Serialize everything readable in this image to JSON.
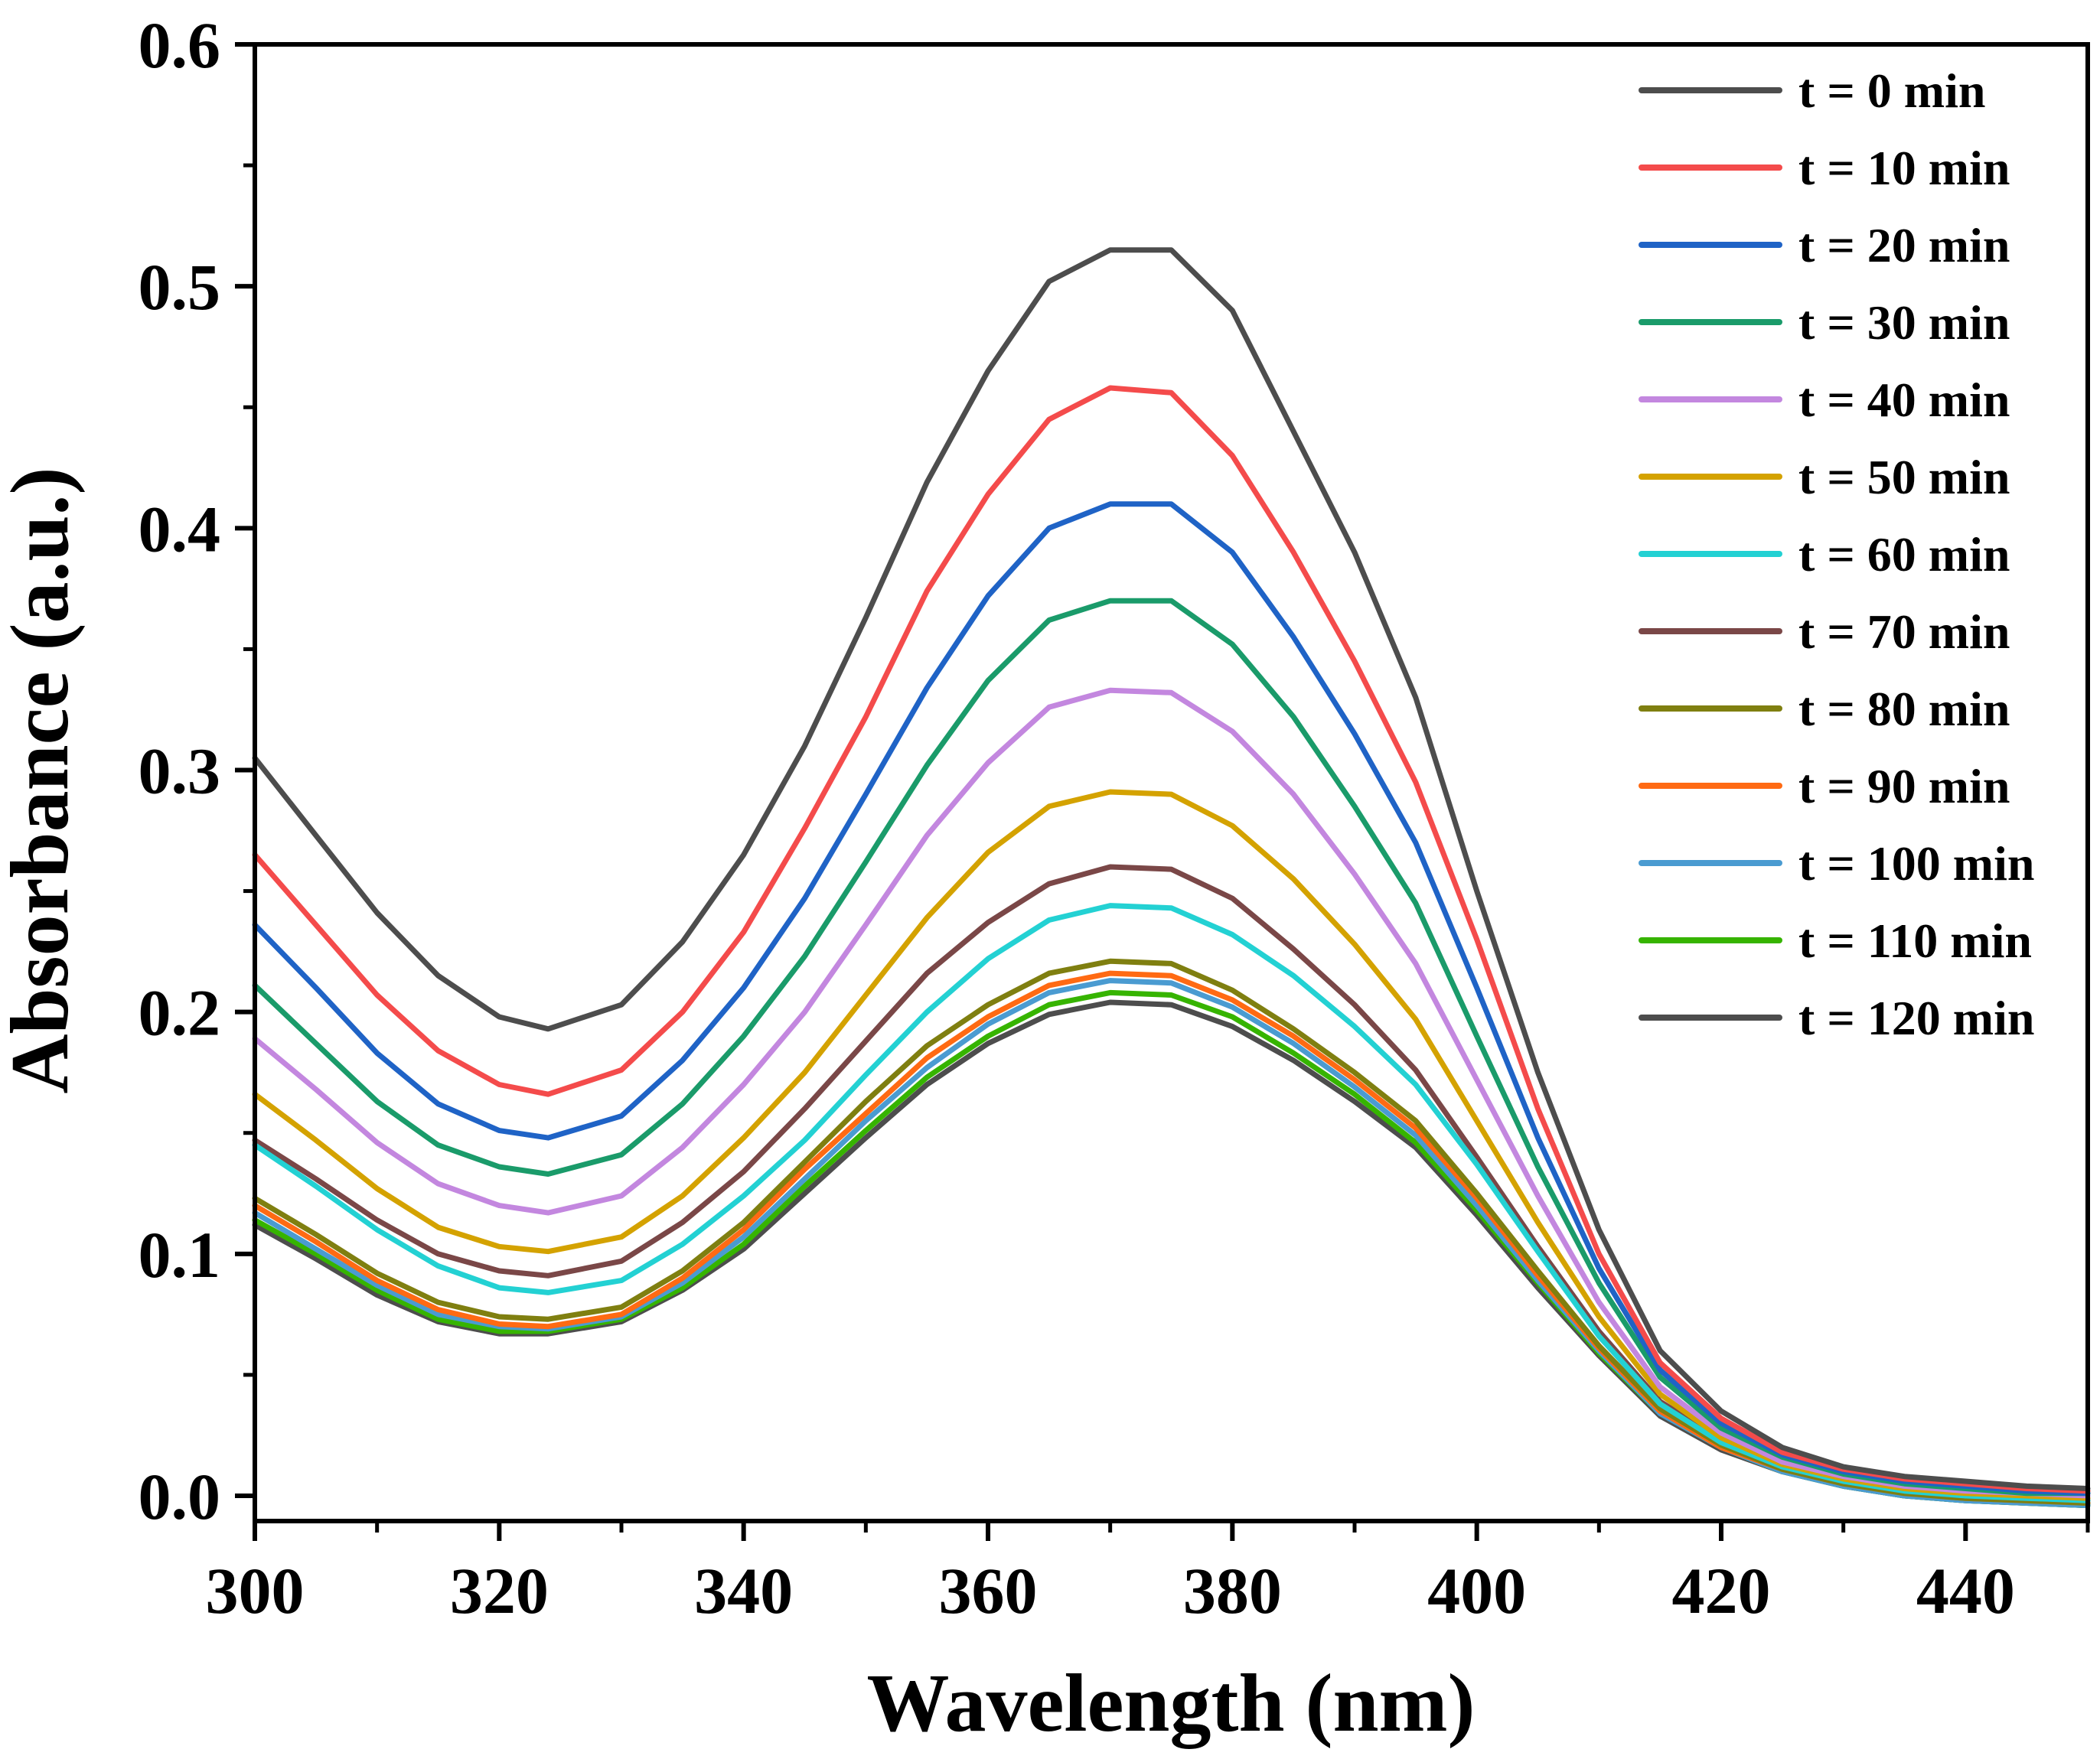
{
  "chart_data": {
    "type": "line",
    "title": "",
    "xlabel": "Wavelength (nm)",
    "ylabel": "Absorbance (a.u.)",
    "xlim": [
      300,
      450
    ],
    "ylim": [
      -0.01,
      0.6
    ],
    "xticks": [
      300,
      320,
      340,
      360,
      380,
      400,
      420,
      440
    ],
    "xtick_labels": [
      "300",
      "320",
      "340",
      "360",
      "380",
      "400",
      "420",
      "440"
    ],
    "yticks": [
      0.0,
      0.1,
      0.2,
      0.3,
      0.4,
      0.5,
      0.6
    ],
    "ytick_labels": [
      "0.0",
      "0.1",
      "0.2",
      "0.3",
      "0.4",
      "0.5",
      "0.6"
    ],
    "grid": false,
    "legend_position": "top-right",
    "x": [
      300,
      305,
      310,
      315,
      320,
      324,
      330,
      335,
      340,
      345,
      350,
      355,
      360,
      365,
      370,
      375,
      380,
      385,
      390,
      395,
      400,
      405,
      410,
      415,
      420,
      425,
      430,
      435,
      440,
      445,
      450
    ],
    "series": [
      {
        "name": "t = 0 min",
        "color": "#4d4d4d",
        "values": [
          0.305,
          0.273,
          0.241,
          0.215,
          0.198,
          0.193,
          0.203,
          0.229,
          0.265,
          0.31,
          0.363,
          0.419,
          0.465,
          0.502,
          0.515,
          0.515,
          0.49,
          0.44,
          0.39,
          0.33,
          0.25,
          0.175,
          0.11,
          0.06,
          0.035,
          0.02,
          0.012,
          0.008,
          0.006,
          0.004,
          0.003
        ]
      },
      {
        "name": "t = 10 min",
        "color": "#f44b4b",
        "values": [
          0.265,
          0.236,
          0.207,
          0.184,
          0.17,
          0.166,
          0.176,
          0.2,
          0.233,
          0.276,
          0.322,
          0.374,
          0.414,
          0.445,
          0.458,
          0.456,
          0.43,
          0.39,
          0.345,
          0.295,
          0.23,
          0.16,
          0.1,
          0.055,
          0.032,
          0.018,
          0.011,
          0.007,
          0.005,
          0.003,
          0.002
        ]
      },
      {
        "name": "t = 20 min",
        "color": "#1f63c6",
        "values": [
          0.236,
          0.21,
          0.183,
          0.162,
          0.151,
          0.148,
          0.157,
          0.18,
          0.21,
          0.247,
          0.29,
          0.334,
          0.372,
          0.4,
          0.41,
          0.41,
          0.39,
          0.355,
          0.315,
          0.27,
          0.21,
          0.148,
          0.094,
          0.052,
          0.03,
          0.017,
          0.01,
          0.006,
          0.004,
          0.002,
          0.001
        ]
      },
      {
        "name": "t = 30 min",
        "color": "#1a9b6a",
        "values": [
          0.211,
          0.187,
          0.163,
          0.145,
          0.136,
          0.133,
          0.141,
          0.162,
          0.19,
          0.223,
          0.262,
          0.302,
          0.337,
          0.362,
          0.37,
          0.37,
          0.352,
          0.322,
          0.285,
          0.245,
          0.19,
          0.136,
          0.088,
          0.049,
          0.028,
          0.016,
          0.009,
          0.005,
          0.003,
          0.001,
          0.001
        ]
      },
      {
        "name": "t = 40 min",
        "color": "#c387df",
        "values": [
          0.189,
          0.168,
          0.146,
          0.129,
          0.12,
          0.117,
          0.124,
          0.144,
          0.17,
          0.2,
          0.236,
          0.273,
          0.303,
          0.326,
          0.333,
          0.332,
          0.316,
          0.29,
          0.257,
          0.22,
          0.172,
          0.124,
          0.08,
          0.045,
          0.026,
          0.014,
          0.008,
          0.004,
          0.002,
          0.001,
          0.0
        ]
      },
      {
        "name": "t = 50 min",
        "color": "#d4a200",
        "values": [
          0.166,
          0.147,
          0.127,
          0.111,
          0.103,
          0.101,
          0.107,
          0.124,
          0.148,
          0.175,
          0.207,
          0.239,
          0.266,
          0.285,
          0.291,
          0.29,
          0.277,
          0.255,
          0.228,
          0.197,
          0.155,
          0.113,
          0.074,
          0.042,
          0.024,
          0.013,
          0.007,
          0.003,
          0.001,
          0.0,
          -0.001
        ]
      },
      {
        "name": "t = 60 min",
        "color": "#23d1d3",
        "values": [
          0.145,
          0.128,
          0.11,
          0.095,
          0.086,
          0.084,
          0.089,
          0.104,
          0.124,
          0.147,
          0.174,
          0.2,
          0.222,
          0.238,
          0.244,
          0.243,
          0.232,
          0.215,
          0.194,
          0.17,
          0.137,
          0.101,
          0.066,
          0.038,
          0.022,
          0.012,
          0.006,
          0.002,
          0.0,
          -0.001,
          -0.002
        ]
      },
      {
        "name": "t = 70 min",
        "color": "#7a4747",
        "values": [
          0.147,
          0.131,
          0.114,
          0.1,
          0.093,
          0.091,
          0.097,
          0.113,
          0.134,
          0.16,
          0.188,
          0.216,
          0.237,
          0.253,
          0.26,
          0.259,
          0.247,
          0.226,
          0.203,
          0.176,
          0.14,
          0.103,
          0.068,
          0.039,
          0.023,
          0.012,
          0.006,
          0.002,
          0.0,
          -0.001,
          -0.002
        ]
      },
      {
        "name": "t = 80 min",
        "color": "#7f7f10",
        "values": [
          0.123,
          0.108,
          0.092,
          0.08,
          0.074,
          0.073,
          0.078,
          0.093,
          0.113,
          0.138,
          0.163,
          0.186,
          0.203,
          0.216,
          0.221,
          0.22,
          0.209,
          0.193,
          0.175,
          0.155,
          0.125,
          0.093,
          0.062,
          0.036,
          0.021,
          0.011,
          0.005,
          0.001,
          -0.001,
          -0.002,
          -0.003
        ]
      },
      {
        "name": "t = 90 min",
        "color": "#ff6a13",
        "values": [
          0.12,
          0.105,
          0.089,
          0.077,
          0.071,
          0.07,
          0.075,
          0.09,
          0.11,
          0.135,
          0.158,
          0.181,
          0.198,
          0.211,
          0.216,
          0.215,
          0.205,
          0.19,
          0.172,
          0.152,
          0.123,
          0.091,
          0.061,
          0.035,
          0.02,
          0.011,
          0.005,
          0.001,
          -0.001,
          -0.002,
          -0.003
        ]
      },
      {
        "name": "t = 100 min",
        "color": "#4a9bd1",
        "values": [
          0.117,
          0.102,
          0.087,
          0.075,
          0.07,
          0.069,
          0.074,
          0.088,
          0.107,
          0.131,
          0.155,
          0.177,
          0.195,
          0.208,
          0.213,
          0.212,
          0.202,
          0.187,
          0.169,
          0.149,
          0.12,
          0.089,
          0.06,
          0.034,
          0.02,
          0.01,
          0.004,
          0.0,
          -0.002,
          -0.003,
          -0.004
        ]
      },
      {
        "name": "t = 110 min",
        "color": "#36b400",
        "values": [
          0.114,
          0.1,
          0.085,
          0.073,
          0.068,
          0.068,
          0.073,
          0.086,
          0.104,
          0.128,
          0.151,
          0.173,
          0.19,
          0.203,
          0.208,
          0.207,
          0.198,
          0.183,
          0.166,
          0.146,
          0.118,
          0.088,
          0.059,
          0.034,
          0.02,
          0.01,
          0.004,
          0.0,
          -0.002,
          -0.003,
          -0.004
        ]
      },
      {
        "name": "t = 120 min",
        "color": "#4d4d4d",
        "values": [
          0.112,
          0.098,
          0.083,
          0.072,
          0.067,
          0.067,
          0.072,
          0.085,
          0.102,
          0.125,
          0.148,
          0.17,
          0.187,
          0.199,
          0.204,
          0.203,
          0.194,
          0.18,
          0.163,
          0.144,
          0.116,
          0.086,
          0.058,
          0.033,
          0.019,
          0.01,
          0.004,
          0.0,
          -0.002,
          -0.003,
          -0.004
        ]
      }
    ]
  }
}
